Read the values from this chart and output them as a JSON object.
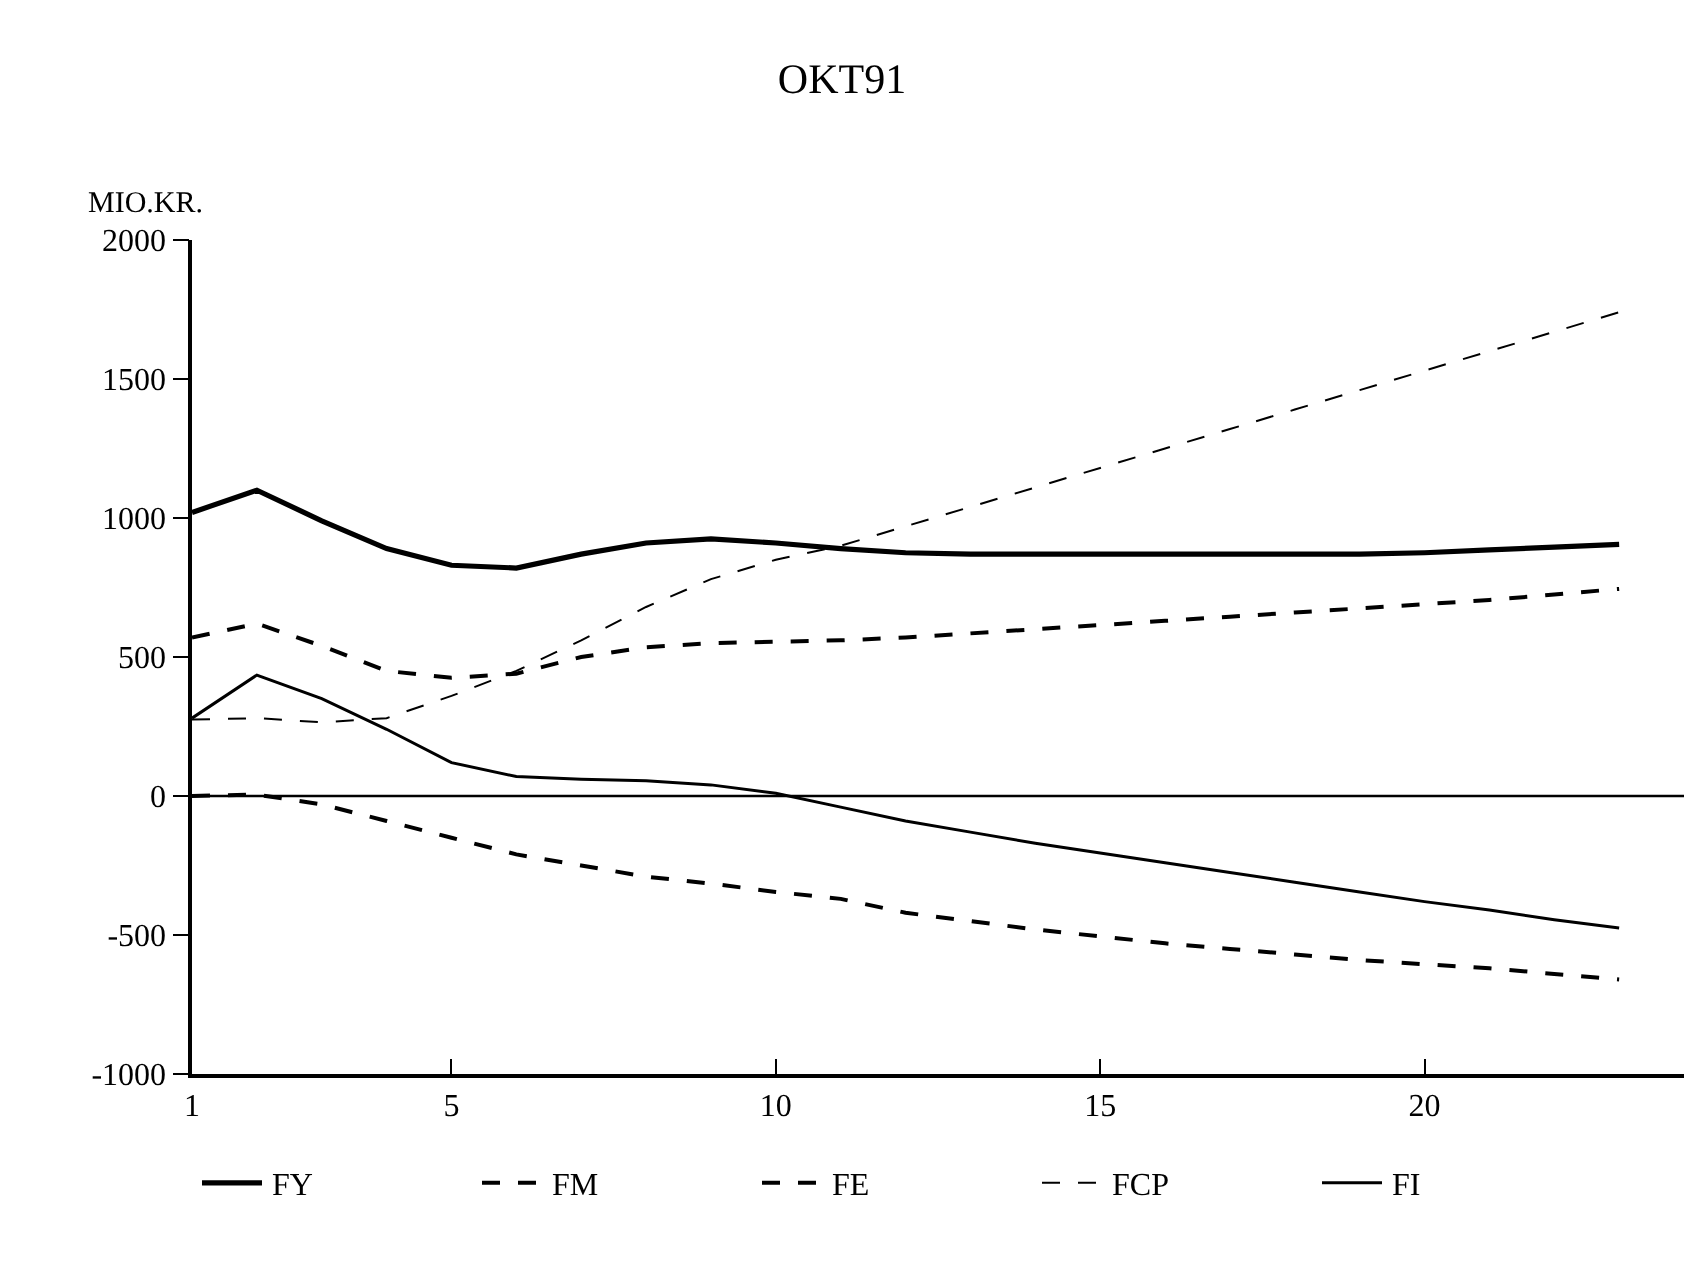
{
  "chart_data": {
    "type": "line",
    "title": "OKT91",
    "ylabel": "MIO.KR.",
    "x": [
      1,
      2,
      3,
      4,
      5,
      6,
      7,
      8,
      9,
      10,
      11,
      12,
      13,
      14,
      15,
      16,
      17,
      18,
      19,
      20,
      21,
      22,
      23
    ],
    "series": [
      {
        "name": "FY",
        "color": "#000000",
        "line_style": "solid",
        "values": [
          1020,
          1100,
          990,
          890,
          830,
          820,
          870,
          910,
          925,
          910,
          890,
          875,
          870,
          870,
          870,
          870,
          870,
          870,
          870,
          875,
          885,
          895,
          905
        ]
      },
      {
        "name": "FM",
        "color": "#000000",
        "line_style": "dashed",
        "values": [
          570,
          620,
          540,
          450,
          425,
          440,
          500,
          535,
          550,
          555,
          560,
          570,
          585,
          600,
          615,
          630,
          645,
          660,
          675,
          690,
          705,
          725,
          745
        ]
      },
      {
        "name": "FE",
        "color": "#000000",
        "line_style": "dashed",
        "values": [
          0,
          5,
          -30,
          -90,
          -150,
          -210,
          -250,
          -290,
          -315,
          -345,
          -370,
          -420,
          -450,
          -480,
          -505,
          -530,
          -550,
          -570,
          -590,
          -605,
          -620,
          -640,
          -660
        ]
      },
      {
        "name": "FCP",
        "color": "#000000",
        "line_style": "dashed",
        "values": [
          275,
          280,
          265,
          280,
          360,
          450,
          560,
          680,
          780,
          850,
          900,
          970,
          1040,
          1110,
          1180,
          1250,
          1320,
          1390,
          1460,
          1530,
          1600,
          1670,
          1740
        ]
      },
      {
        "name": "FI",
        "color": "#000000",
        "line_style": "solid",
        "values": [
          280,
          435,
          350,
          240,
          120,
          70,
          60,
          55,
          40,
          10,
          -40,
          -90,
          -130,
          -170,
          -205,
          -240,
          -275,
          -310,
          -345,
          -380,
          -410,
          -445,
          -475
        ]
      }
    ],
    "xlim": [
      1,
      24
    ],
    "xticks": [
      1,
      5,
      10,
      15,
      20
    ],
    "ylim": [
      -1000,
      2000
    ],
    "yticks": [
      -1000,
      -500,
      0,
      500,
      1000,
      1500,
      2000
    ],
    "ref_lines": [
      {
        "axis": "y",
        "value": 0,
        "color": "#000000"
      }
    ],
    "grid": false,
    "legend": "bottom left",
    "marker": "none"
  }
}
